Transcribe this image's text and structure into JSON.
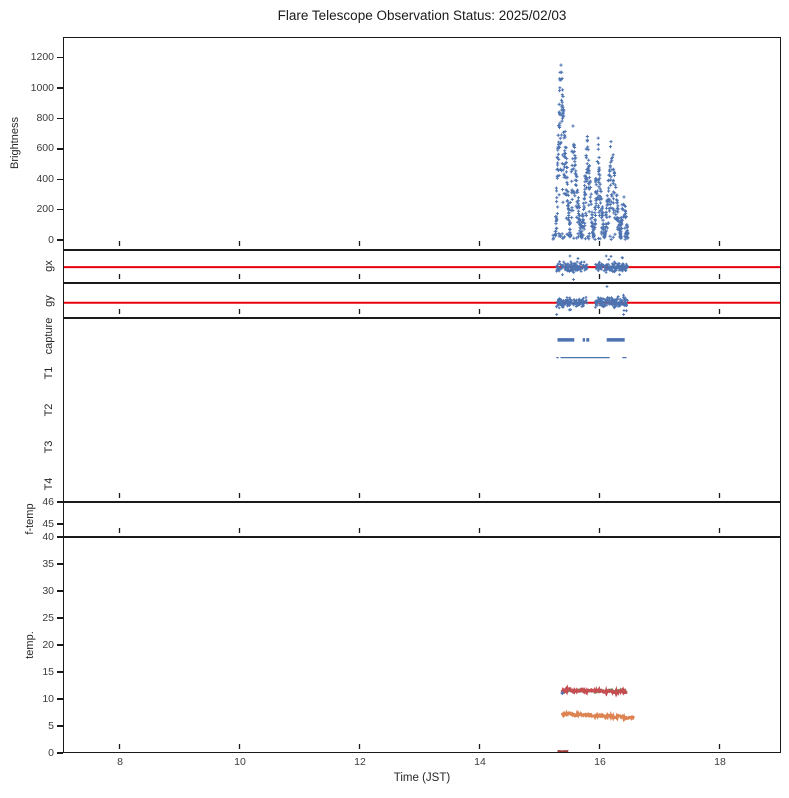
{
  "title": "Flare Telescope Observation Status: 2025/02/03",
  "x_axis": {
    "label": "Time (JST)",
    "min": 7.05,
    "max": 19.02,
    "ticks": [
      8,
      10,
      12,
      14,
      16,
      18
    ]
  },
  "palette": {
    "scatter_blue": "#4c72b0",
    "guide_red": "#e8000b",
    "temp_red": "#c44e52",
    "temp_green": "#55a868",
    "temp_orange": "#dd8452",
    "temp_dark_red": "#9c3a3a",
    "axis": "#1a1a1a"
  },
  "chart_data": {
    "type": "scatter",
    "note": "multi-panel time series, shared x axis 07-19 JST, data present only ~15.2-16.6 JST",
    "panels": [
      {
        "id": "brightness",
        "ylabel": "Brightness",
        "ylim": [
          -65,
          1335
        ],
        "yticks": [
          0,
          200,
          400,
          600,
          800,
          1000,
          1200
        ],
        "marker": "plus",
        "color": "#4c72b0",
        "bursts": [
          {
            "t_start": 15.26,
            "t_end": 15.52,
            "t_peak": 15.35,
            "v_peak": 1300,
            "n": 150
          },
          {
            "t_start": 15.5,
            "t_end": 15.7,
            "t_peak": 15.56,
            "v_peak": 800,
            "n": 90
          },
          {
            "t_start": 15.7,
            "t_end": 15.9,
            "t_peak": 15.8,
            "v_peak": 730,
            "n": 100
          },
          {
            "t_start": 15.9,
            "t_end": 16.08,
            "t_peak": 15.97,
            "v_peak": 700,
            "n": 90
          },
          {
            "t_start": 16.08,
            "t_end": 16.36,
            "t_peak": 16.2,
            "v_peak": 710,
            "n": 130
          },
          {
            "t_start": 16.34,
            "t_end": 16.48,
            "t_peak": 16.4,
            "v_peak": 380,
            "n": 50
          }
        ],
        "floor_noise": {
          "t_start": 15.22,
          "t_end": 16.48,
          "v_max": 40,
          "n": 40
        }
      },
      {
        "id": "gx",
        "ylabel": "gx",
        "red_line_frac": 0.52,
        "clusters": [
          [
            15.28,
            15.8
          ],
          [
            15.93,
            16.47
          ]
        ],
        "n": 270,
        "color": "#4c72b0",
        "line_color": "#e8000b"
      },
      {
        "id": "gy",
        "ylabel": "gy",
        "red_line_frac": 0.57,
        "clusters": [
          [
            15.28,
            15.8
          ],
          [
            15.93,
            16.47
          ]
        ],
        "n": 270,
        "color": "#4c72b0",
        "line_color": "#e8000b"
      },
      {
        "id": "capture",
        "row_labels": [
          "capture",
          "T1",
          "T2",
          "T3",
          "T4"
        ],
        "color": "#4c72b0",
        "thick_frac": 0.115,
        "thick_segments": [
          [
            15.3,
            15.58
          ],
          [
            15.72,
            15.76
          ],
          [
            15.78,
            15.83
          ],
          [
            16.12,
            16.42
          ]
        ],
        "thin_frac": 0.212,
        "thin_segments": [
          [
            15.28,
            15.32
          ],
          [
            15.35,
            16.17
          ],
          [
            16.38,
            16.45
          ]
        ]
      },
      {
        "id": "ftemp",
        "ylabel": "f-temp",
        "yticks": [
          {
            "value": 46,
            "frac": 0.0
          },
          {
            "value": 45,
            "frac": 0.63
          }
        ]
      },
      {
        "id": "temp",
        "ylabel": "temp.",
        "ylim": [
          0,
          40
        ],
        "yticks": [
          0,
          5,
          10,
          15,
          20,
          25,
          30,
          35,
          40
        ],
        "series": [
          {
            "name": "green",
            "color": "#55a868",
            "t_start": 15.37,
            "t_end": 16.45,
            "v_start": 11.35,
            "v_end": 11.45,
            "noise": 0.12,
            "width": 2.2
          },
          {
            "name": "red",
            "color": "#c44e52",
            "t_start": 15.37,
            "t_end": 16.45,
            "v_start": 11.55,
            "v_end": 11.25,
            "noise": 0.22,
            "width": 2.6
          },
          {
            "name": "orange",
            "color": "#dd8452",
            "t_start": 15.37,
            "t_end": 16.58,
            "v_start": 7.15,
            "v_end": 6.45,
            "noise": 0.2,
            "width": 2.6
          },
          {
            "name": "dark-red",
            "color": "#9c3a3a",
            "t_start": 15.3,
            "t_end": 15.48,
            "v_start": 0.18,
            "v_end": 0.18,
            "noise": 0.04,
            "width": 2.4
          }
        ],
        "blue_point": {
          "t": 15.38,
          "v": 11.0,
          "color": "#4c72b0"
        }
      }
    ]
  }
}
